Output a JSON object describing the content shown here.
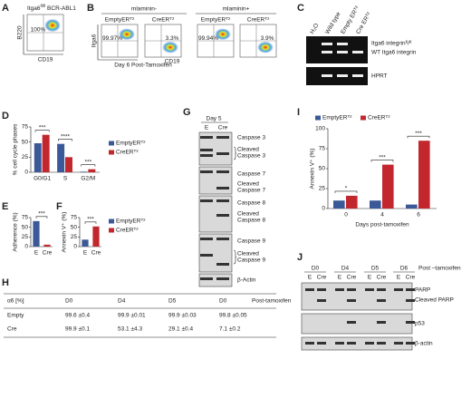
{
  "chart_data": [
    {
      "type": "bar",
      "label": "D",
      "ylabel": "% cell cycle phases",
      "categories": [
        "G0/G1",
        "S",
        "G2/M"
      ],
      "series": [
        {
          "name": "EmptyERᵀ²",
          "color": "#3b5998",
          "values": [
            48,
            47,
            1
          ]
        },
        {
          "name": "CreERᵀ²",
          "color": "#c1272d",
          "values": [
            62,
            25,
            5
          ]
        }
      ],
      "ylim": [
        0,
        75
      ],
      "yticks": [
        0,
        25,
        50,
        75
      ],
      "annotations": [
        "***",
        "****",
        "***"
      ]
    },
    {
      "type": "bar",
      "label": "E",
      "ylabel": "Adherence (%)",
      "categories": [
        "E",
        "Cre"
      ],
      "values": [
        66,
        5
      ],
      "colors": [
        "#3b5998",
        "#c1272d"
      ],
      "ylim": [
        0,
        75
      ],
      "yticks": [
        0,
        25,
        50,
        75
      ],
      "annotations": [
        "***"
      ]
    },
    {
      "type": "bar",
      "label": "F",
      "ylabel": "Annexin V⁺ (%)",
      "categories": [
        "E",
        "Cre"
      ],
      "values": [
        18,
        52
      ],
      "colors": [
        "#3b5998",
        "#c1272d"
      ],
      "legend": [
        "EmptyERᵀ²",
        "CreERᵀ²"
      ],
      "ylim": [
        0,
        75
      ],
      "yticks": [
        0,
        25,
        50,
        75
      ],
      "annotations": [
        "***"
      ]
    },
    {
      "type": "bar",
      "label": "I",
      "ylabel": "Annexin V⁺ (%)",
      "xlabel": "Days post-tamoxifen",
      "categories": [
        "0",
        "4",
        "6"
      ],
      "series": [
        {
          "name": "EmptyERᵀ²",
          "color": "#3b5998",
          "values": [
            10,
            10,
            5
          ]
        },
        {
          "name": "CreERᵀ²",
          "color": "#c1272d",
          "values": [
            16,
            55,
            85
          ]
        }
      ],
      "ylim": [
        0,
        100
      ],
      "yticks": [
        0,
        25,
        50,
        75,
        100
      ],
      "annotations": [
        "*",
        "***",
        "***"
      ]
    }
  ],
  "flow_a": {
    "label": "A",
    "title": "Itga6",
    "title_sup": "fl/fl",
    "title_rest": " BCR-ABL1",
    "gate": "100%",
    "ylabel": "B220",
    "xlabel": "CD19",
    "caption": "Day 6 Post-Tamoxifen"
  },
  "flow_b": {
    "label": "B",
    "groups": [
      "mlaminin-",
      "mlaminin+"
    ],
    "ylabel": "Itga6",
    "xlabel": "CD19",
    "plots": [
      {
        "name": "EmptyERᵀ²",
        "gate": "99.97%"
      },
      {
        "name": "CreERᵀ²",
        "gate": "3.3%"
      },
      {
        "name": "EmptyERᵀ²",
        "gate": "99.94%"
      },
      {
        "name": "CreERᵀ²",
        "gate": "3.9%"
      }
    ]
  },
  "gel_c": {
    "label": "C",
    "lanes": [
      "H₂O",
      "Wild type",
      "Empty ERᵀ²",
      "Cre ERᵀ²"
    ],
    "bands": [
      "Itga6 integrinᶠˡ/ᶠˡ",
      "WT Itga6 integrin",
      "HPRT"
    ]
  },
  "blot_g": {
    "label": "G",
    "day": "Day 5",
    "lanes": [
      "E",
      "Cre"
    ],
    "rows": [
      [
        "Caspase 3"
      ],
      [
        "Cleaved",
        "Caspase 3"
      ],
      [
        "Caspase 7"
      ],
      [
        "Cleaved",
        "Caspase 7"
      ],
      [
        "Caspase 8"
      ],
      [
        "Cleaved",
        "Caspase 8"
      ],
      [
        "Caspase 9"
      ],
      [
        "Cleaved",
        "Caspase 9"
      ],
      [
        "β-Actin"
      ]
    ]
  },
  "table_h": {
    "label": "H",
    "header": [
      "α6 [%]",
      "D0",
      "D4",
      "D5",
      "D0",
      "Post-tamoxifen"
    ],
    "rows": [
      [
        "Empty",
        "99.6 ±0.4",
        "99.9 ±0.01",
        "99.9 ±0.03",
        "99.8 ±0.05"
      ],
      [
        "Cre",
        "99.9 ±0.1",
        "53.1 ±4.3",
        "29.1 ±0.4",
        "7.1 ±0.2"
      ]
    ]
  },
  "blot_j": {
    "label": "J",
    "days": [
      "D0",
      "D4",
      "D5",
      "D6"
    ],
    "post": "Post –tamoxifen",
    "lanes": [
      "E",
      "Cre"
    ],
    "rows": [
      "PARP",
      "Cleaved PARP",
      "p53",
      "β-actin"
    ]
  }
}
